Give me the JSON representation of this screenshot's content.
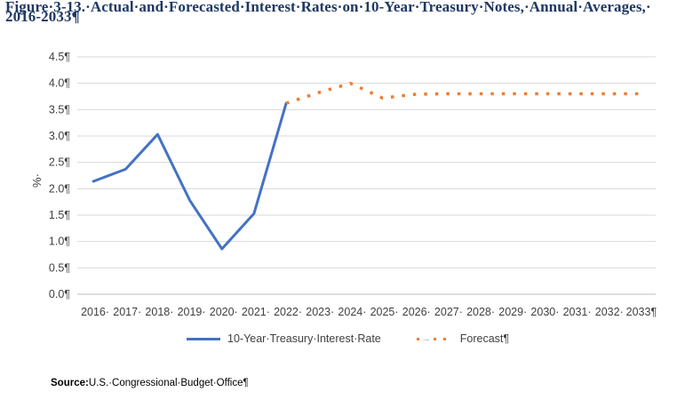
{
  "figure": {
    "title_line1": "Figure·3-13.·Actual·and·Forecasted·Interest·Rates·on·10-Year·Treasury·Notes,·Annual·Averages,·",
    "title_line2": "2016-2033¶"
  },
  "chart_data": {
    "type": "line",
    "x": [
      "2016",
      "2017",
      "2018",
      "2019",
      "2020",
      "2021",
      "2022",
      "2023",
      "2024",
      "2025",
      "2026",
      "2027",
      "2028",
      "2029",
      "2030",
      "2031",
      "2032",
      "2033"
    ],
    "x_tick_labels": [
      "2016·",
      "2017·",
      "2018·",
      "2019·",
      "2020·",
      "2021·",
      "2022·",
      "2023·",
      "2024·",
      "2025·",
      "2026·",
      "2027·",
      "2028·",
      "2029·",
      "2030·",
      "2031·",
      "2032·",
      "2033¶"
    ],
    "ylabel": "%·",
    "ylim": [
      0,
      4.5
    ],
    "y_ticks": [
      0,
      0.5,
      1.0,
      1.5,
      2.0,
      2.5,
      3.0,
      3.5,
      4.0,
      4.5
    ],
    "y_tick_labels": [
      "0.0¶",
      "0.5¶",
      "1.0¶",
      "1.5¶",
      "2.0¶",
      "2.5¶",
      "3.0¶",
      "3.5¶",
      "4.0¶",
      "4.5¶"
    ],
    "grid": true,
    "legend_position": "bottom",
    "series": [
      {
        "name": "10-Year·Treasury·Interest·Rate",
        "style": "solid",
        "color": "#4472c4",
        "points": [
          [
            "2016",
            2.14
          ],
          [
            "2017",
            2.37
          ],
          [
            "2018",
            3.03
          ],
          [
            "2019",
            1.78
          ],
          [
            "2020",
            0.86
          ],
          [
            "2021",
            1.53
          ],
          [
            "2022",
            3.62
          ]
        ]
      },
      {
        "name": "Forecast¶",
        "style": "dotted",
        "color": "#ed7d31",
        "points": [
          [
            "2022",
            3.62
          ],
          [
            "2023",
            3.82
          ],
          [
            "2024",
            4.0
          ],
          [
            "2025",
            3.72
          ],
          [
            "2026",
            3.79
          ],
          [
            "2027",
            3.8
          ],
          [
            "2028",
            3.8
          ],
          [
            "2029",
            3.8
          ],
          [
            "2030",
            3.8
          ],
          [
            "2031",
            3.8
          ],
          [
            "2032",
            3.8
          ],
          [
            "2033",
            3.8
          ]
        ]
      }
    ]
  },
  "legend": {
    "arrow": "→"
  },
  "source": {
    "label": "Source:",
    "text": "U.S.·Congressional·Budget·Office¶"
  }
}
